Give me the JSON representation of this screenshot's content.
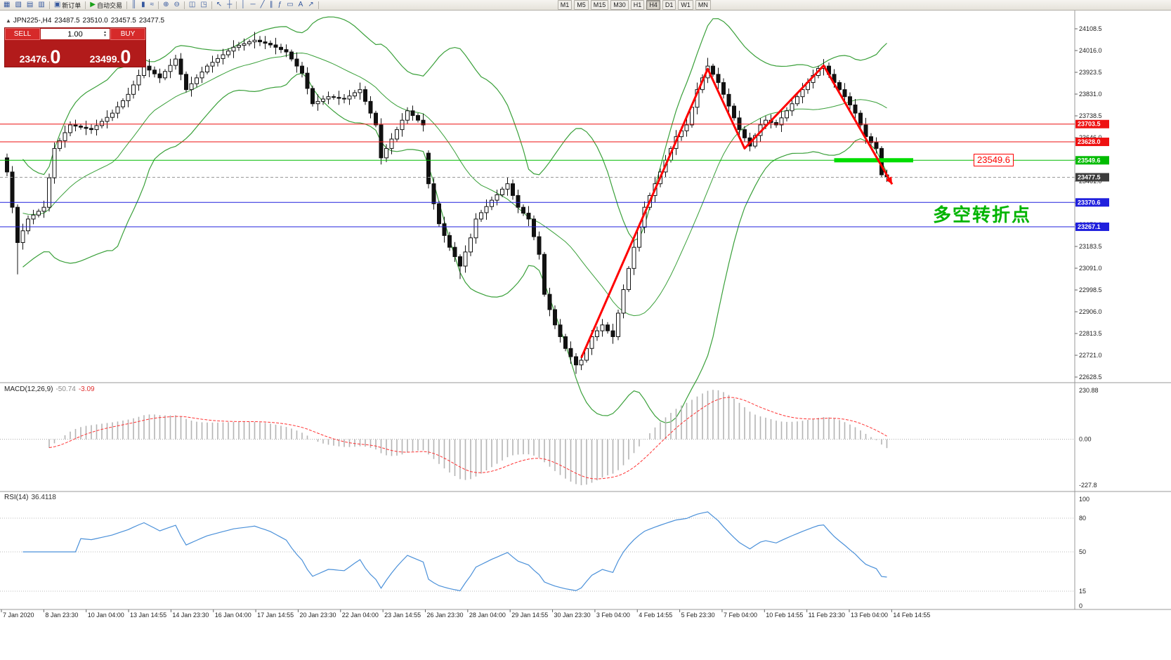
{
  "toolbar": {
    "buttons": [
      {
        "name": "new-chart",
        "icon": "▦"
      },
      {
        "name": "chart-profiles",
        "icon": "▧"
      },
      {
        "name": "market-watch",
        "icon": "▤"
      },
      {
        "name": "data-window",
        "icon": "▥"
      },
      {
        "sep": true
      },
      {
        "name": "new-order",
        "icon": "▣",
        "label": "新订单"
      },
      {
        "sep": true
      },
      {
        "name": "autotrading",
        "icon": "▶",
        "label": "自动交易",
        "icon_color": "#18a018"
      },
      {
        "sep": true
      },
      {
        "name": "bar-chart-mode",
        "icon": "║"
      },
      {
        "name": "candle-chart-mode",
        "icon": "▮"
      },
      {
        "name": "line-chart-mode",
        "icon": "≈"
      },
      {
        "sep": true
      },
      {
        "name": "zoom-in",
        "icon": "⊕"
      },
      {
        "name": "zoom-out",
        "icon": "⊖"
      },
      {
        "sep": true
      },
      {
        "name": "tile-windows",
        "icon": "◫"
      },
      {
        "name": "cascade-windows",
        "icon": "◳"
      },
      {
        "sep": true
      },
      {
        "name": "cursor",
        "icon": "↖"
      },
      {
        "name": "crosshair",
        "icon": "┼"
      },
      {
        "sep": true
      },
      {
        "name": "vertical-line-tool",
        "icon": "│"
      },
      {
        "name": "horizontal-line-tool",
        "icon": "─"
      },
      {
        "name": "trendline-tool",
        "icon": "╱"
      },
      {
        "name": "channel-tool",
        "icon": "∥"
      },
      {
        "name": "fibonacci-tool",
        "icon": "ƒ"
      },
      {
        "name": "shapes-tool",
        "icon": "▭"
      },
      {
        "name": "text-tool",
        "icon": "A"
      },
      {
        "name": "arrows-tool",
        "icon": "↗"
      },
      {
        "sep": true
      }
    ],
    "timeframes": {
      "items": [
        "M1",
        "M5",
        "M15",
        "M30",
        "H1",
        "H4",
        "D1",
        "W1",
        "MN"
      ],
      "active": "H4"
    }
  },
  "symbol_header": {
    "symbol_period": "JPN225-,H4",
    "open": "23487.5",
    "high": "23510.0",
    "low": "23457.5",
    "close": "23477.5"
  },
  "trade_panel": {
    "sell_label": "SELL",
    "buy_label": "BUY",
    "lot": "1.00",
    "sell_price_main": "23476.",
    "sell_price_big": "0",
    "buy_price_main": "23499.",
    "buy_price_big": "0"
  },
  "chart_data": {
    "type": "candlestick",
    "symbol": "JPN225-",
    "timeframe": "H4",
    "price_axis_labels": [
      "24108.5",
      "24016.0",
      "23923.5",
      "23831.0",
      "23738.5",
      "23646.0",
      "23553.5",
      "23461.0",
      "23368.5",
      "23276.0",
      "23183.5",
      "23091.0",
      "22998.5",
      "22906.0",
      "22813.5",
      "22721.0",
      "22628.5"
    ],
    "candles": [
      [
        23560,
        23578,
        23482,
        23500
      ],
      [
        23500,
        23525,
        23325,
        23350
      ],
      [
        23350,
        23362,
        23065,
        23200
      ],
      [
        23200,
        23280,
        23170,
        23250
      ],
      [
        23250,
        23315,
        23235,
        23300
      ],
      [
        23300,
        23339,
        23278,
        23317
      ],
      [
        23317,
        23343,
        23307,
        23333
      ],
      [
        23333,
        23378,
        23305,
        23350
      ],
      [
        23350,
        23493,
        23332,
        23475
      ],
      [
        23475,
        23625,
        23450,
        23600
      ],
      [
        23600,
        23645,
        23588,
        23633
      ],
      [
        23633,
        23697,
        23603,
        23667
      ],
      [
        23667,
        23715,
        23652,
        23700
      ],
      [
        23700,
        23722,
        23673,
        23695
      ],
      [
        23695,
        23705,
        23680,
        23690
      ],
      [
        23690,
        23718,
        23657,
        23685
      ],
      [
        23685,
        23703,
        23662,
        23680
      ],
      [
        23680,
        23722,
        23655,
        23697
      ],
      [
        23697,
        23727,
        23685,
        23715
      ],
      [
        23715,
        23762,
        23685,
        23732
      ],
      [
        23732,
        23765,
        23717,
        23750
      ],
      [
        23750,
        23799,
        23728,
        23777
      ],
      [
        23777,
        23813,
        23767,
        23803
      ],
      [
        23803,
        23858,
        23775,
        23830
      ],
      [
        23830,
        23888,
        23812,
        23870
      ],
      [
        23870,
        23935,
        23845,
        23910
      ],
      [
        23910,
        23962,
        23898,
        23950
      ],
      [
        23950,
        23980,
        23903,
        23933
      ],
      [
        23933,
        23948,
        23902,
        23917
      ],
      [
        23917,
        23939,
        23878,
        23900
      ],
      [
        23900,
        23937,
        23890,
        23927
      ],
      [
        23927,
        23981,
        23899,
        23953
      ],
      [
        23953,
        23998,
        23935,
        23980
      ],
      [
        23980,
        24005,
        23890,
        23915
      ],
      [
        23915,
        23927,
        23838,
        23850
      ],
      [
        23850,
        23905,
        23820,
        23875
      ],
      [
        23875,
        23915,
        23860,
        23900
      ],
      [
        23900,
        23947,
        23878,
        23925
      ],
      [
        23925,
        23960,
        23915,
        23950
      ],
      [
        23950,
        23994,
        23922,
        23966
      ],
      [
        23966,
        24000,
        23948,
        23982
      ],
      [
        23982,
        24023,
        23957,
        23998
      ],
      [
        23998,
        24026,
        23986,
        24014
      ],
      [
        24014,
        24060,
        23984,
        24030
      ],
      [
        24030,
        24053,
        24015,
        24038
      ],
      [
        24038,
        24067,
        24016,
        24045
      ],
      [
        24045,
        24063,
        24035,
        24053
      ],
      [
        24053,
        24095,
        24025,
        24060
      ],
      [
        24060,
        24078,
        24035,
        24053
      ],
      [
        24053,
        24078,
        24022,
        24047
      ],
      [
        24047,
        24059,
        24028,
        24040
      ],
      [
        24040,
        24070,
        24000,
        24030
      ],
      [
        24030,
        24045,
        24005,
        24020
      ],
      [
        24020,
        24042,
        23988,
        24010
      ],
      [
        24010,
        24020,
        23970,
        23980
      ],
      [
        23980,
        24008,
        23922,
        23950
      ],
      [
        23950,
        23968,
        23902,
        23920
      ],
      [
        23920,
        23945,
        23830,
        23855
      ],
      [
        23855,
        23867,
        23778,
        23790
      ],
      [
        23790,
        23830,
        23760,
        23800
      ],
      [
        23800,
        23825,
        23785,
        23810
      ],
      [
        23810,
        23842,
        23788,
        23820
      ],
      [
        23820,
        23830,
        23807,
        23817
      ],
      [
        23817,
        23845,
        23785,
        23813
      ],
      [
        23813,
        23831,
        23792,
        23810
      ],
      [
        23810,
        23848,
        23785,
        23823
      ],
      [
        23823,
        23849,
        23811,
        23837
      ],
      [
        23837,
        23880,
        23807,
        23850
      ],
      [
        23850,
        23865,
        23785,
        23800
      ],
      [
        23800,
        23822,
        23728,
        23750
      ],
      [
        23750,
        23760,
        23690,
        23700
      ],
      [
        23700,
        23728,
        23532,
        23560
      ],
      [
        23560,
        23618,
        23542,
        23600
      ],
      [
        23600,
        23665,
        23575,
        23640
      ],
      [
        23640,
        23692,
        23628,
        23680
      ],
      [
        23680,
        23750,
        23650,
        23720
      ],
      [
        23720,
        23775,
        23705,
        23760
      ],
      [
        23760,
        23782,
        23718,
        23740
      ],
      [
        23740,
        23750,
        23710,
        23720
      ],
      [
        23720,
        23748,
        23672,
        23700
      ],
      [
        23580,
        23592,
        23430,
        23450
      ],
      [
        23450,
        23475,
        23340,
        23365
      ],
      [
        23365,
        23377,
        23268,
        23280
      ],
      [
        23280,
        23310,
        23200,
        23230
      ],
      [
        23230,
        23245,
        23165,
        23180
      ],
      [
        23180,
        23202,
        23118,
        23140
      ],
      [
        23140,
        23150,
        23045,
        23100
      ],
      [
        23100,
        23188,
        23072,
        23160
      ],
      [
        23160,
        23238,
        23142,
        23220
      ],
      [
        23220,
        23325,
        23195,
        23300
      ],
      [
        23300,
        23339,
        23288,
        23327
      ],
      [
        23327,
        23383,
        23297,
        23353
      ],
      [
        23353,
        23395,
        23338,
        23380
      ],
      [
        23380,
        23425,
        23358,
        23403
      ],
      [
        23403,
        23437,
        23393,
        23427
      ],
      [
        23427,
        23478,
        23399,
        23450
      ],
      [
        23450,
        23468,
        23382,
        23400
      ],
      [
        23400,
        23425,
        23325,
        23350
      ],
      [
        23350,
        23362,
        23313,
        23325
      ],
      [
        23325,
        23355,
        23270,
        23300
      ],
      [
        23300,
        23315,
        23210,
        23225
      ],
      [
        23225,
        23247,
        23128,
        23150
      ],
      [
        23150,
        23160,
        22970,
        22980
      ],
      [
        22980,
        23008,
        22887,
        22915
      ],
      [
        22915,
        22933,
        22832,
        22850
      ],
      [
        22850,
        22875,
        22775,
        22800
      ],
      [
        22800,
        22812,
        22738,
        22750
      ],
      [
        22750,
        22780,
        22685,
        22715
      ],
      [
        22715,
        22730,
        22642,
        22680
      ],
      [
        22680,
        22722,
        22658,
        22700
      ],
      [
        22700,
        22760,
        22690,
        22750
      ],
      [
        22750,
        22828,
        22722,
        22800
      ],
      [
        22800,
        22843,
        22782,
        22825
      ],
      [
        22825,
        22875,
        22800,
        22850
      ],
      [
        22850,
        22862,
        22813,
        22825
      ],
      [
        22825,
        22855,
        22770,
        22800
      ],
      [
        22800,
        22915,
        22785,
        22900
      ],
      [
        22900,
        23022,
        22878,
        23000
      ],
      [
        23000,
        23100,
        22990,
        23090
      ],
      [
        23090,
        23208,
        23062,
        23180
      ],
      [
        23180,
        23283,
        23162,
        23265
      ],
      [
        23265,
        23375,
        23240,
        23350
      ],
      [
        23350,
        23412,
        23338,
        23400
      ],
      [
        23400,
        23480,
        23370,
        23450
      ],
      [
        23450,
        23515,
        23435,
        23500
      ],
      [
        23500,
        23572,
        23478,
        23550
      ],
      [
        23550,
        23610,
        23540,
        23600
      ],
      [
        23600,
        23678,
        23572,
        23650
      ],
      [
        23650,
        23693,
        23632,
        23675
      ],
      [
        23675,
        23725,
        23650,
        23700
      ],
      [
        23700,
        23787,
        23688,
        23775
      ],
      [
        23775,
        23880,
        23745,
        23850
      ],
      [
        23850,
        23915,
        23835,
        23900
      ],
      [
        23900,
        23985,
        23878,
        23950
      ],
      [
        23950,
        23960,
        23905,
        23915
      ],
      [
        23915,
        23943,
        23852,
        23880
      ],
      [
        23880,
        23898,
        23812,
        23830
      ],
      [
        23830,
        23855,
        23755,
        23780
      ],
      [
        23780,
        23792,
        23718,
        23730
      ],
      [
        23730,
        23760,
        23650,
        23680
      ],
      [
        23680,
        23695,
        23630,
        23645
      ],
      [
        23645,
        23667,
        23588,
        23610
      ],
      [
        23610,
        23665,
        23600,
        23655
      ],
      [
        23655,
        23728,
        23627,
        23700
      ],
      [
        23700,
        23738,
        23682,
        23720
      ],
      [
        23720,
        23745,
        23685,
        23710
      ],
      [
        23710,
        23722,
        23688,
        23700
      ],
      [
        23700,
        23760,
        23670,
        23730
      ],
      [
        23730,
        23775,
        23715,
        23760
      ],
      [
        23760,
        23812,
        23738,
        23790
      ],
      [
        23790,
        23830,
        23780,
        23820
      ],
      [
        23820,
        23878,
        23792,
        23850
      ],
      [
        23850,
        23898,
        23832,
        23880
      ],
      [
        23880,
        23935,
        23855,
        23910
      ],
      [
        23910,
        23952,
        23898,
        23940
      ],
      [
        23940,
        23980,
        23910,
        23950
      ],
      [
        23950,
        23965,
        23900,
        23915
      ],
      [
        23915,
        23937,
        23858,
        23880
      ],
      [
        23880,
        23890,
        23840,
        23850
      ],
      [
        23850,
        23878,
        23792,
        23820
      ],
      [
        23820,
        23838,
        23767,
        23785
      ],
      [
        23785,
        23810,
        23725,
        23750
      ],
      [
        23750,
        23762,
        23688,
        23700
      ],
      [
        23700,
        23730,
        23620,
        23650
      ],
      [
        23650,
        23665,
        23610,
        23625
      ],
      [
        23625,
        23647,
        23578,
        23600
      ],
      [
        23600,
        23610,
        23478,
        23488
      ],
      [
        23487.5,
        23510.0,
        23457.5,
        23477.5
      ]
    ],
    "bollinger": {
      "period": 20,
      "deviation": 2,
      "color": "#3aa03a"
    },
    "levels": [
      {
        "price": 23703.5,
        "color": "#ee1111",
        "label": "23703.5",
        "style": "solid"
      },
      {
        "price": 23628.0,
        "color": "#ee1111",
        "label": "23628.0",
        "style": "solid"
      },
      {
        "price": 23549.6,
        "color": "#00bb00",
        "label": "23549.6",
        "style": "solid"
      },
      {
        "price": 23477.5,
        "color": "#999999",
        "label": "23477.5",
        "style": "dashed",
        "label_bg": "#3c3c3c"
      },
      {
        "price": 23370.6,
        "color": "#2020dd",
        "label": "23370.6",
        "style": "solid"
      },
      {
        "price": 23267.1,
        "color": "#2020dd",
        "label": "23267.1",
        "style": "solid"
      }
    ],
    "highlight_segment": {
      "price": 23549.6,
      "from_bar": 157,
      "to_bar": 172,
      "color": "#00dd00",
      "width": 6
    },
    "trend_line": {
      "color": "#ff0000",
      "width": 3,
      "points": [
        [
          109,
          22710
        ],
        [
          133,
          23938
        ],
        [
          140,
          23600
        ],
        [
          155,
          23952
        ],
        [
          168,
          23448
        ]
      ]
    },
    "annotation": {
      "text": "多空转折点",
      "color": "#00b400"
    },
    "callout": {
      "text": "23549.6",
      "color": "#ff0000"
    },
    "macd": {
      "title": "MACD(12,26,9)",
      "value": "-50.74",
      "signal_value": "-3.09",
      "axis_labels": [
        "230.88",
        "0.00",
        "-227.8"
      ],
      "histogram_color": "#b4b4b4",
      "signal_color": "#ff3333"
    },
    "rsi": {
      "title": "RSI(14)",
      "value": "36.4118",
      "axis_labels": [
        "100",
        "80",
        "50",
        "15",
        "0"
      ],
      "levels": [
        80,
        50,
        15
      ],
      "color": "#4a90d9"
    },
    "time_axis": [
      "7 Jan 2020",
      "8 Jan 23:30",
      "10 Jan 04:00",
      "13 Jan 14:55",
      "14 Jan 23:30",
      "16 Jan 04:00",
      "17 Jan 14:55",
      "20 Jan 23:30",
      "22 Jan 04:00",
      "23 Jan 14:55",
      "26 Jan 23:30",
      "28 Jan 04:00",
      "29 Jan 14:55",
      "30 Jan 23:30",
      "3 Feb 04:00",
      "4 Feb 14:55",
      "5 Feb 23:30",
      "7 Feb 04:00",
      "10 Feb 14:55",
      "11 Feb 23:30",
      "13 Feb 04:00",
      "14 Feb 14:55"
    ]
  }
}
